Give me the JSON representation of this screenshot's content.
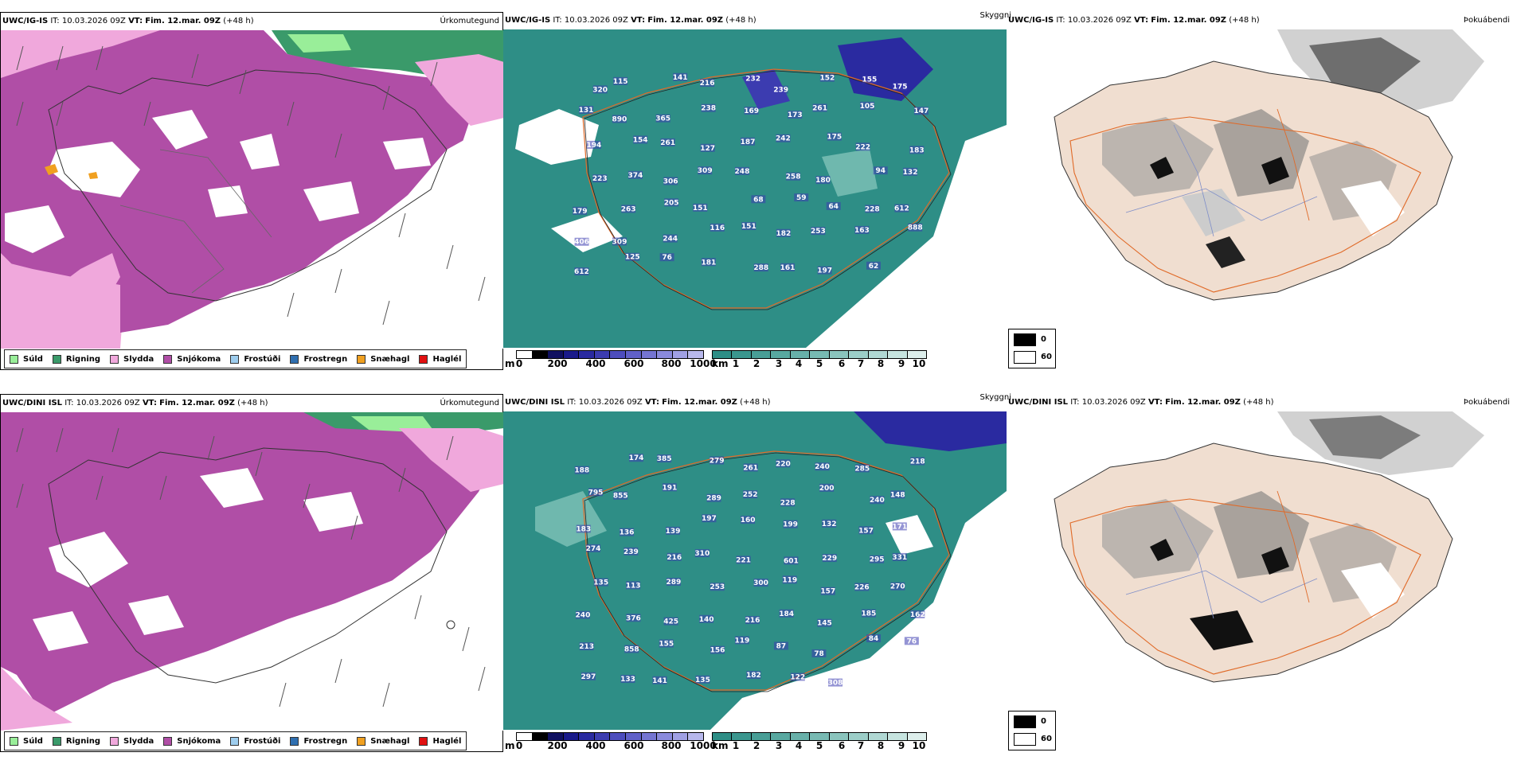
{
  "colors": {
    "sudl": "#99ee99",
    "rigning": "#3a9a6a",
    "slydda": "#f0a8dc",
    "snjokoma": "#b04ea6",
    "frostudi": "#9ecdee",
    "frostregn": "#2f6fb0",
    "snaehagl": "#f0a020",
    "haglel": "#e01010",
    "cloud_low": "#2e8e86",
    "cloud_high": "#2a2aa0",
    "road": "#e06a28",
    "land_fog": "#f0ded0"
  },
  "rows": [
    {
      "precip": {
        "model": "UWC/IG-IS",
        "it_label": "IT:",
        "it": "10.03.2026 09Z",
        "vt_label": "VT:",
        "vt": "Fim. 12.mar. 09Z",
        "lead": "(+48 h)",
        "field": "Úrkomutegund"
      },
      "cloud": {
        "model": "UWC/IG-IS",
        "it_label": "IT:",
        "it": "10.03.2026 09Z",
        "vt_label": "VT:",
        "vt": "Fim. 12.mar. 09Z",
        "lead": "(+48 h)",
        "field": "Skyggni"
      },
      "fog": {
        "model": "UWC/IG-IS",
        "it_label": "IT:",
        "it": "10.03.2026 09Z",
        "vt_label": "VT:",
        "vt": "Fim. 12.mar. 09Z",
        "lead": "(+48 h)",
        "field": "Þokuábendi"
      },
      "cloud_numbers": [
        "320",
        "115",
        "141",
        "216",
        "232",
        "239",
        "152",
        "155",
        "175",
        "131",
        "890",
        "365",
        "238",
        "169",
        "173",
        "261",
        "105",
        "147",
        "194",
        "154",
        "261",
        "127",
        "187",
        "242",
        "175",
        "222",
        "183",
        "223",
        "374",
        "306",
        "309",
        "248",
        "258",
        "180",
        "94",
        "132",
        "179",
        "263",
        "205",
        "151",
        "68",
        "59",
        "64",
        "228",
        "612",
        "406",
        "309",
        "244",
        "116",
        "151",
        "182",
        "253",
        "163",
        "888",
        "612",
        "125",
        "76",
        "181",
        "288",
        "161",
        "197",
        "62"
      ]
    },
    {
      "precip": {
        "model": "UWC/DINI ISL",
        "it_label": "IT:",
        "it": "10.03.2026 09Z",
        "vt_label": "VT:",
        "vt": "Fim. 12.mar. 09Z",
        "lead": "(+48 h)",
        "field": "Úrkomutegund"
      },
      "cloud": {
        "model": "UWC/DINI ISL",
        "it_label": "IT:",
        "it": "10.03.2026 09Z",
        "vt_label": "VT:",
        "vt": "Fim. 12.mar. 09Z",
        "lead": "(+48 h)",
        "field": "Skyggni"
      },
      "fog": {
        "model": "UWC/DINI ISL",
        "it_label": "IT:",
        "it": "10.03.2026 09Z",
        "vt_label": "VT:",
        "vt": "Fim. 12.mar. 09Z",
        "lead": "(+48 h)",
        "field": "Þokuábendi"
      },
      "cloud_numbers": [
        "188",
        "174",
        "385",
        "279",
        "261",
        "220",
        "240",
        "285",
        "218",
        "795",
        "855",
        "191",
        "289",
        "252",
        "228",
        "200",
        "240",
        "148",
        "183",
        "136",
        "139",
        "197",
        "160",
        "199",
        "132",
        "157",
        "171",
        "274",
        "239",
        "216",
        "310",
        "221",
        "601",
        "229",
        "295",
        "331",
        "135",
        "113",
        "289",
        "253",
        "300",
        "119",
        "157",
        "226",
        "270",
        "240",
        "376",
        "425",
        "140",
        "216",
        "184",
        "145",
        "185",
        "162",
        "213",
        "858",
        "155",
        "156",
        "119",
        "87",
        "78",
        "84",
        "76",
        "297",
        "133",
        "141",
        "135",
        "182",
        "122",
        "308"
      ]
    }
  ],
  "legend": [
    "Súld",
    "Rigning",
    "Slydda",
    "Snjókoma",
    "Frostúði",
    "Frostregn",
    "Snæhagl",
    "Haglél"
  ],
  "cbar_m": {
    "unit": "m",
    "ticks": [
      "0",
      "200",
      "400",
      "600",
      "800",
      "1000"
    ]
  },
  "cbar_km": {
    "unit": "km",
    "ticks": [
      "1",
      "2",
      "3",
      "4",
      "5",
      "6",
      "7",
      "8",
      "9",
      "10"
    ]
  },
  "fog_key": {
    "black": "0",
    "white": "60"
  }
}
